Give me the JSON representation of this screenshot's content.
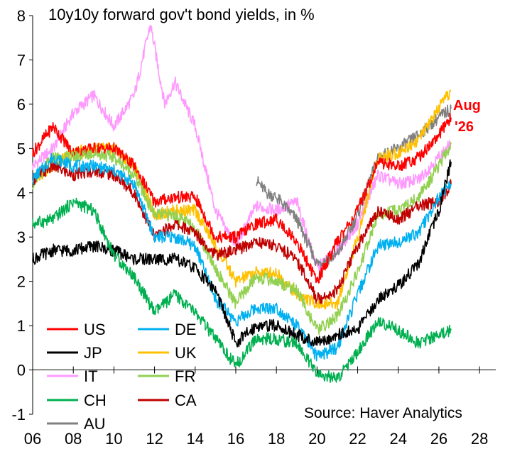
{
  "chart_data": {
    "type": "line",
    "title": "10y10y forward gov't bond yields, in %",
    "xlabel": "",
    "ylabel": "",
    "xlim": [
      2006,
      2028.8
    ],
    "ylim": [
      -1,
      8
    ],
    "x_ticks": [
      2006,
      2008,
      2010,
      2012,
      2014,
      2016,
      2018,
      2020,
      2022,
      2024,
      2026,
      2028
    ],
    "x_tick_labels": [
      "06",
      "08",
      "10",
      "12",
      "14",
      "16",
      "18",
      "20",
      "22",
      "24",
      "26",
      "28"
    ],
    "y_ticks": [
      -1,
      0,
      1,
      2,
      3,
      4,
      5,
      6,
      7,
      8
    ],
    "grid": false,
    "legend_position": "bottom-left",
    "annotation": {
      "text": "Aug '26",
      "lines": [
        "Aug",
        "'26"
      ],
      "color": "#ff0000"
    },
    "source": "Source: Haver Analytics",
    "series": [
      {
        "name": "US",
        "color": "#ff0000",
        "points": [
          [
            2006,
            4.9
          ],
          [
            2007,
            5.5
          ],
          [
            2008,
            4.9
          ],
          [
            2009,
            5.0
          ],
          [
            2010,
            5.0
          ],
          [
            2011,
            4.6
          ],
          [
            2012,
            3.8
          ],
          [
            2013,
            3.9
          ],
          [
            2014,
            3.9
          ],
          [
            2015,
            3.0
          ],
          [
            2016,
            3.0
          ],
          [
            2017,
            3.3
          ],
          [
            2018,
            3.4
          ],
          [
            2019,
            2.9
          ],
          [
            2020,
            2.0
          ],
          [
            2021,
            2.9
          ],
          [
            2022,
            3.6
          ],
          [
            2023,
            4.7
          ],
          [
            2024,
            4.6
          ],
          [
            2025,
            4.8
          ],
          [
            2026,
            5.3
          ],
          [
            2026.6,
            5.7
          ]
        ]
      },
      {
        "name": "DE",
        "color": "#00b0f0",
        "points": [
          [
            2006,
            4.3
          ],
          [
            2007,
            4.8
          ],
          [
            2008,
            4.6
          ],
          [
            2009,
            4.6
          ],
          [
            2010,
            4.5
          ],
          [
            2011,
            4.2
          ],
          [
            2012,
            3.0
          ],
          [
            2013,
            3.0
          ],
          [
            2014,
            2.8
          ],
          [
            2015,
            1.6
          ],
          [
            2016,
            1.1
          ],
          [
            2017,
            1.4
          ],
          [
            2018,
            1.4
          ],
          [
            2019,
            1.0
          ],
          [
            2020,
            0.3
          ],
          [
            2021,
            0.5
          ],
          [
            2022,
            1.7
          ],
          [
            2023,
            2.8
          ],
          [
            2024,
            2.9
          ],
          [
            2025,
            3.1
          ],
          [
            2026,
            3.9
          ],
          [
            2026.6,
            4.2
          ]
        ]
      },
      {
        "name": "JP",
        "color": "#000000",
        "points": [
          [
            2006,
            2.5
          ],
          [
            2007,
            2.7
          ],
          [
            2008,
            2.7
          ],
          [
            2009,
            2.8
          ],
          [
            2010,
            2.7
          ],
          [
            2011,
            2.5
          ],
          [
            2012,
            2.5
          ],
          [
            2013,
            2.5
          ],
          [
            2014,
            2.3
          ],
          [
            2015,
            1.8
          ],
          [
            2016,
            0.6
          ],
          [
            2017,
            1.0
          ],
          [
            2018,
            1.0
          ],
          [
            2019,
            0.8
          ],
          [
            2020,
            0.6
          ],
          [
            2021,
            0.8
          ],
          [
            2022,
            0.9
          ],
          [
            2023,
            1.6
          ],
          [
            2024,
            1.9
          ],
          [
            2025,
            2.4
          ],
          [
            2026,
            3.6
          ],
          [
            2026.6,
            4.7
          ]
        ]
      },
      {
        "name": "UK",
        "color": "#ffc000",
        "points": [
          [
            2006,
            4.3
          ],
          [
            2007,
            4.6
          ],
          [
            2008,
            4.9
          ],
          [
            2009,
            5.0
          ],
          [
            2010,
            5.0
          ],
          [
            2011,
            4.6
          ],
          [
            2012,
            3.5
          ],
          [
            2013,
            3.6
          ],
          [
            2014,
            3.6
          ],
          [
            2015,
            2.8
          ],
          [
            2016,
            2.0
          ],
          [
            2017,
            2.2
          ],
          [
            2018,
            2.2
          ],
          [
            2019,
            1.7
          ],
          [
            2020,
            1.5
          ],
          [
            2021,
            1.5
          ],
          [
            2022,
            3.0
          ],
          [
            2023,
            4.8
          ],
          [
            2024,
            4.9
          ],
          [
            2025,
            5.2
          ],
          [
            2026,
            5.9
          ],
          [
            2026.6,
            6.3
          ]
        ]
      },
      {
        "name": "IT",
        "color": "#ff99ff",
        "points": [
          [
            2006,
            4.6
          ],
          [
            2007,
            5.0
          ],
          [
            2008,
            5.8
          ],
          [
            2009,
            6.2
          ],
          [
            2010,
            5.5
          ],
          [
            2011,
            6.2
          ],
          [
            2011.8,
            7.8
          ],
          [
            2012.5,
            6.0
          ],
          [
            2013,
            6.5
          ],
          [
            2014,
            5.5
          ],
          [
            2015,
            3.6
          ],
          [
            2016,
            2.8
          ],
          [
            2017,
            3.7
          ],
          [
            2018,
            3.6
          ],
          [
            2019,
            3.8
          ],
          [
            2020,
            2.3
          ],
          [
            2021,
            2.7
          ],
          [
            2022,
            3.3
          ],
          [
            2023,
            4.4
          ],
          [
            2024,
            4.2
          ],
          [
            2025,
            4.3
          ],
          [
            2026,
            4.8
          ],
          [
            2026.6,
            5.1
          ]
        ]
      },
      {
        "name": "FR",
        "color": "#92d050",
        "points": [
          [
            2006,
            4.2
          ],
          [
            2007,
            4.8
          ],
          [
            2008,
            4.8
          ],
          [
            2009,
            4.9
          ],
          [
            2010,
            4.8
          ],
          [
            2011,
            4.4
          ],
          [
            2012,
            3.5
          ],
          [
            2013,
            3.5
          ],
          [
            2014,
            3.2
          ],
          [
            2015,
            2.3
          ],
          [
            2016,
            1.5
          ],
          [
            2017,
            2.1
          ],
          [
            2018,
            2.0
          ],
          [
            2019,
            1.8
          ],
          [
            2020,
            0.9
          ],
          [
            2021,
            1.2
          ],
          [
            2022,
            2.2
          ],
          [
            2023,
            3.5
          ],
          [
            2024,
            3.6
          ],
          [
            2025,
            3.9
          ],
          [
            2026,
            4.6
          ],
          [
            2026.6,
            5.1
          ]
        ]
      },
      {
        "name": "CH",
        "color": "#00b050",
        "points": [
          [
            2006,
            3.3
          ],
          [
            2007,
            3.4
          ],
          [
            2008,
            3.8
          ],
          [
            2009,
            3.6
          ],
          [
            2010,
            2.6
          ],
          [
            2011,
            2.1
          ],
          [
            2012,
            1.3
          ],
          [
            2013,
            1.7
          ],
          [
            2014,
            1.3
          ],
          [
            2015,
            0.7
          ],
          [
            2016,
            0.1
          ],
          [
            2017,
            0.7
          ],
          [
            2018,
            0.7
          ],
          [
            2019,
            0.6
          ],
          [
            2020,
            -0.1
          ],
          [
            2021,
            -0.2
          ],
          [
            2022,
            0.4
          ],
          [
            2023,
            1.1
          ],
          [
            2024,
            0.9
          ],
          [
            2025,
            0.6
          ],
          [
            2026,
            0.8
          ],
          [
            2026.6,
            0.9
          ]
        ]
      },
      {
        "name": "CA",
        "color": "#c00000",
        "points": [
          [
            2006,
            4.3
          ],
          [
            2007,
            4.6
          ],
          [
            2008,
            4.4
          ],
          [
            2009,
            4.5
          ],
          [
            2010,
            4.4
          ],
          [
            2011,
            4.0
          ],
          [
            2012,
            3.0
          ],
          [
            2013,
            3.3
          ],
          [
            2014,
            3.1
          ],
          [
            2015,
            2.6
          ],
          [
            2016,
            2.7
          ],
          [
            2017,
            2.9
          ],
          [
            2018,
            2.8
          ],
          [
            2019,
            2.5
          ],
          [
            2020,
            1.6
          ],
          [
            2021,
            1.8
          ],
          [
            2022,
            2.8
          ],
          [
            2023,
            3.6
          ],
          [
            2024,
            3.4
          ],
          [
            2025,
            3.7
          ],
          [
            2026,
            3.8
          ],
          [
            2026.6,
            4.2
          ]
        ]
      },
      {
        "name": "AU",
        "color": "#808080",
        "points": [
          [
            2017,
            4.3
          ],
          [
            2017.5,
            4.0
          ],
          [
            2018,
            3.9
          ],
          [
            2019,
            3.4
          ],
          [
            2020,
            2.4
          ],
          [
            2021,
            2.6
          ],
          [
            2022,
            3.5
          ],
          [
            2023,
            4.8
          ],
          [
            2024,
            5.0
          ],
          [
            2025,
            5.3
          ],
          [
            2026,
            5.7
          ],
          [
            2026.6,
            5.9
          ]
        ]
      }
    ]
  }
}
